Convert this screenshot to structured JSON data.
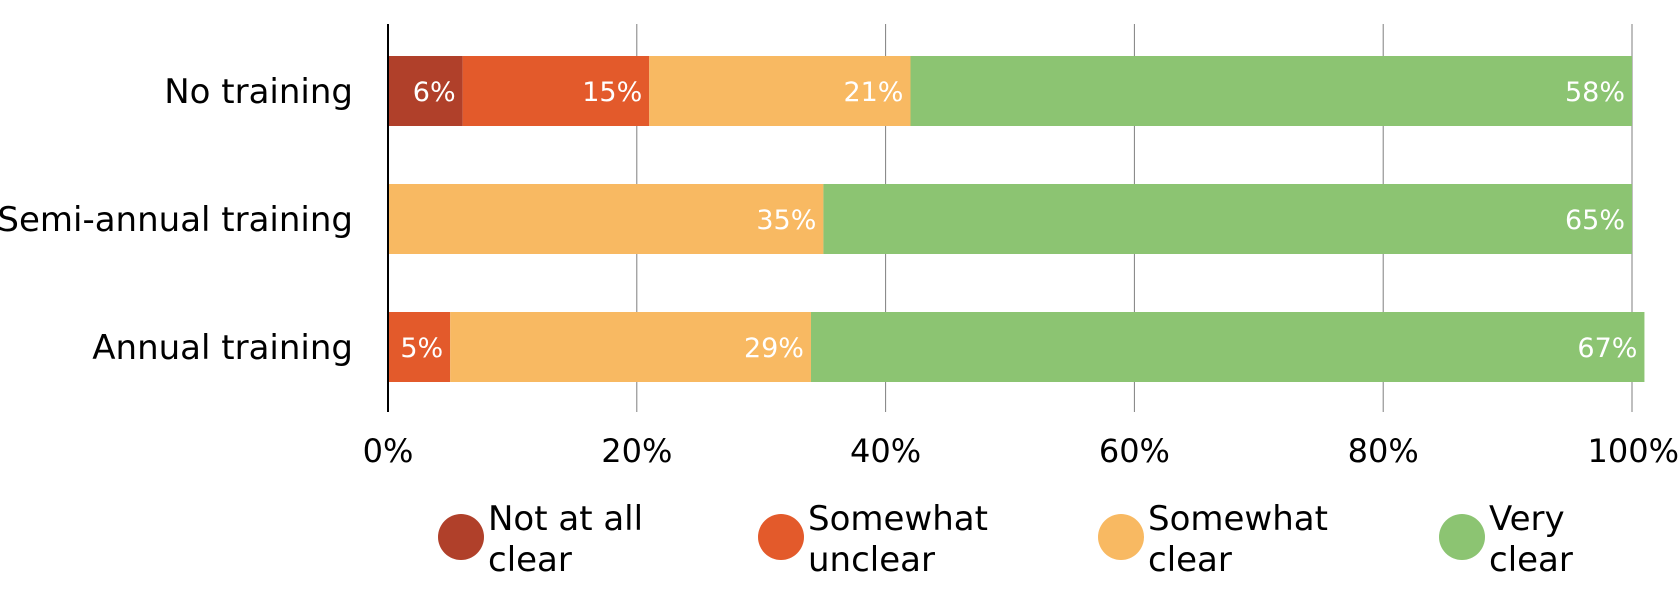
{
  "chart_data": {
    "type": "bar",
    "orientation": "horizontal",
    "stacked": true,
    "categories": [
      "No training",
      "Semi-annual training",
      "Annual training"
    ],
    "series": [
      {
        "name": "Not at all clear",
        "legend_lines": [
          "Not at all",
          "clear"
        ],
        "color": "#b0402a",
        "values": [
          6,
          0,
          0
        ],
        "labels": [
          "6%",
          "",
          ""
        ]
      },
      {
        "name": "Somewhat unclear",
        "legend_lines": [
          "Somewhat",
          "unclear"
        ],
        "color": "#e35a2b",
        "values": [
          15,
          0,
          5
        ],
        "labels": [
          "15%",
          "",
          "5%"
        ]
      },
      {
        "name": "Somewhat clear",
        "legend_lines": [
          "Somewhat",
          "clear"
        ],
        "color": "#f8b962",
        "values": [
          21,
          35,
          29
        ],
        "labels": [
          "21%",
          "35%",
          "29%"
        ]
      },
      {
        "name": "Very clear",
        "legend_lines": [
          "Very",
          "clear"
        ],
        "color": "#8cc472",
        "values": [
          58,
          65,
          67
        ],
        "labels": [
          "58%",
          "65%",
          "67%"
        ]
      }
    ],
    "xlim": [
      0,
      100
    ],
    "xticks": [
      "0%",
      "20%",
      "40%",
      "60%",
      "80%",
      "100%"
    ],
    "grid": true,
    "legend": "bottom"
  }
}
